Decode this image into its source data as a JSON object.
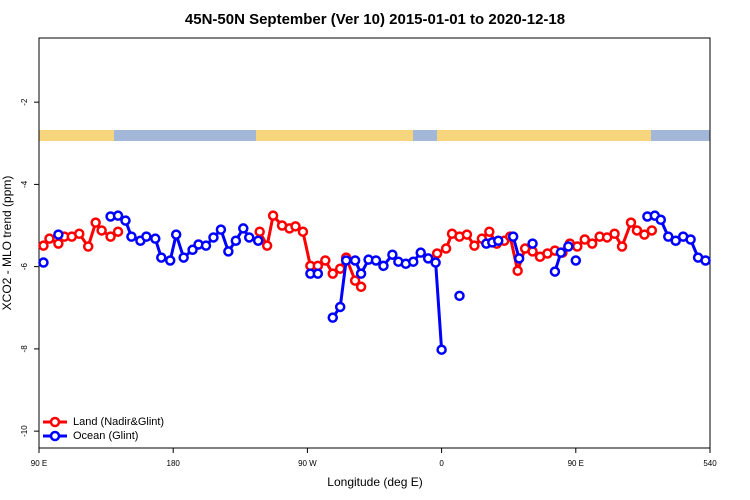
{
  "chart_data": {
    "type": "line",
    "title": "45N-50N September (Ver 10)   2015-01-01 to 2020-12-18",
    "x_label": "Longitude (deg E)",
    "y_label": "XCO2 - MLO trend (ppm)",
    "xlim": [
      90,
      540
    ],
    "xticks": [
      {
        "value": 90,
        "label": "90 E"
      },
      180,
      {
        "value": 270,
        "label": "90 W"
      },
      {
        "value": 360,
        "label": "0"
      },
      {
        "value": 450,
        "label": "90 E"
      },
      540
    ],
    "ylim": [
      -10.41,
      -0.44
    ],
    "yticks": [
      -10,
      -8,
      -6,
      -4,
      -2
    ],
    "legend": "bottom-left",
    "series": [
      {
        "name": "Land (Nadir&Glint)",
        "color": "#ff0000",
        "x": [
          93,
          97,
          103,
          107,
          112,
          117,
          123,
          128,
          132,
          138,
          143,
          null,
          238,
          243,
          247,
          253,
          258,
          262,
          267,
          272,
          277,
          282,
          287,
          292,
          296,
          302,
          306,
          null,
          357,
          363,
          367,
          372,
          377,
          382,
          387,
          392,
          397,
          402,
          406,
          411,
          416,
          421,
          426,
          431,
          436,
          441,
          446,
          451,
          456,
          461,
          466,
          471,
          476,
          481,
          487,
          491,
          496,
          501
        ],
        "values": [
          -5.49,
          -5.32,
          -5.44,
          -5.27,
          -5.27,
          -5.2,
          -5.51,
          -4.93,
          -5.12,
          -5.27,
          -5.15,
          null,
          -5.15,
          -5.49,
          -4.76,
          -5.0,
          -5.07,
          -5.02,
          -5.15,
          -5.98,
          -5.98,
          -5.85,
          -6.17,
          -6.05,
          -5.78,
          -6.34,
          -6.49,
          null,
          -5.68,
          -5.56,
          -5.2,
          -5.27,
          -5.22,
          -5.49,
          -5.32,
          -5.15,
          -5.44,
          -5.37,
          -5.27,
          -6.1,
          -5.56,
          -5.63,
          -5.76,
          -5.68,
          -5.61,
          -5.66,
          -5.44,
          -5.51,
          -5.34,
          -5.44,
          -5.27,
          -5.29,
          -5.2,
          -5.51,
          -4.93,
          -5.12,
          -5.22,
          -5.12
        ]
      },
      {
        "name": "Ocean (Glint)",
        "color": "#0000ff",
        "x": [
          93,
          null,
          103,
          null,
          138,
          143,
          148,
          152,
          158,
          162,
          168,
          172,
          178,
          182,
          187,
          193,
          197,
          202,
          207,
          212,
          217,
          222,
          227,
          231,
          237,
          null,
          272,
          277,
          null,
          287,
          292,
          296,
          302,
          306,
          311,
          316,
          321,
          327,
          331,
          336,
          341,
          346,
          351,
          356,
          360,
          null,
          372,
          null,
          390,
          394,
          398,
          null,
          408,
          412,
          null,
          421,
          null,
          436,
          440,
          445,
          null,
          450,
          null,
          498,
          503,
          507,
          512,
          517,
          522,
          527,
          532,
          537
        ],
        "values": [
          -5.9,
          null,
          -5.22,
          null,
          -4.78,
          -4.76,
          -4.88,
          -5.27,
          -5.37,
          -5.27,
          -5.32,
          -5.78,
          -5.85,
          -5.22,
          -5.78,
          -5.59,
          -5.46,
          -5.49,
          -5.29,
          -5.1,
          -5.63,
          -5.37,
          -5.07,
          -5.29,
          -5.37,
          null,
          -6.17,
          -6.17,
          null,
          -7.24,
          -6.98,
          -5.85,
          -5.85,
          -6.17,
          -5.83,
          -5.85,
          -5.98,
          -5.71,
          -5.88,
          -5.93,
          -5.88,
          -5.66,
          -5.8,
          -5.9,
          -8.02,
          null,
          -6.71,
          null,
          -5.44,
          -5.41,
          -5.37,
          null,
          -5.27,
          -5.8,
          null,
          -5.44,
          null,
          -6.12,
          -5.66,
          -5.51,
          null,
          -5.85,
          null,
          -4.78,
          -4.76,
          -4.86,
          -5.27,
          -5.37,
          -5.27,
          -5.34,
          -5.78,
          -5.85
        ]
      }
    ]
  }
}
